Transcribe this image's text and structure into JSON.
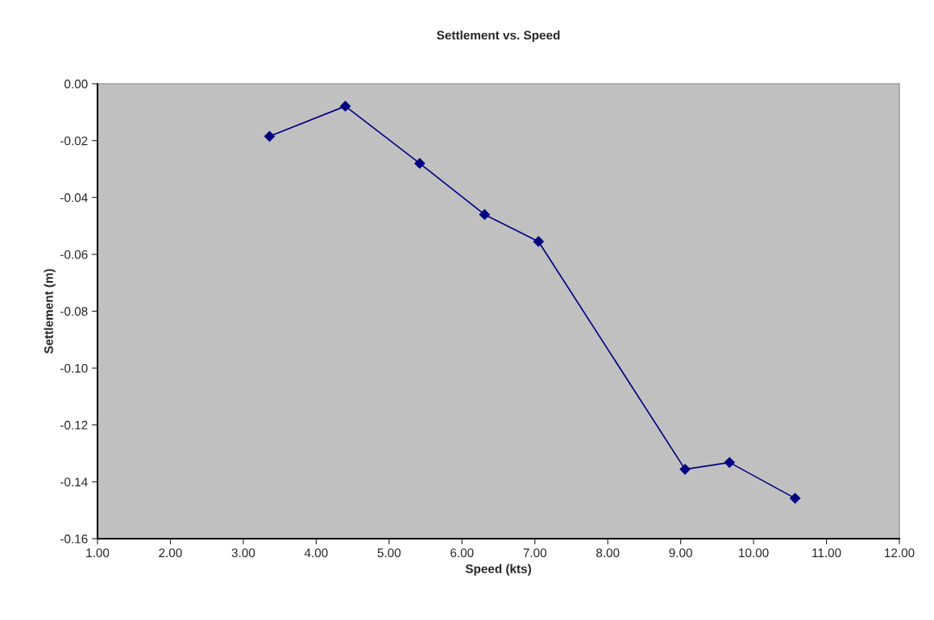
{
  "chart_data": {
    "type": "line",
    "title": "Settlement vs. Speed",
    "xlabel": "Speed (kts)",
    "ylabel": "Settlement (m)",
    "x": [
      3.36,
      4.4,
      5.42,
      6.31,
      7.05,
      9.06,
      9.67,
      10.57
    ],
    "series": [
      {
        "color": "#000080",
        "values": [
          -0.0185,
          -0.0079,
          -0.028,
          -0.046,
          -0.0555,
          -0.1356,
          -0.1332,
          -0.1458
        ]
      }
    ],
    "xlim": [
      1,
      12
    ],
    "xticks": [
      {
        "value": 1,
        "label": "1.00"
      },
      {
        "value": 2,
        "label": "2.00"
      },
      {
        "value": 3,
        "label": "3.00"
      },
      {
        "value": 4,
        "label": "4.00"
      },
      {
        "value": 5,
        "label": "5.00"
      },
      {
        "value": 6,
        "label": "6.00"
      },
      {
        "value": 7,
        "label": "7.00"
      },
      {
        "value": 8,
        "label": "8.00"
      },
      {
        "value": 9,
        "label": "9.00"
      },
      {
        "value": 10,
        "label": "10.00"
      },
      {
        "value": 11,
        "label": "11.00"
      },
      {
        "value": 12,
        "label": "12.00"
      }
    ],
    "ylim": [
      -0.16,
      0
    ],
    "yticks": [
      {
        "value": -0.16,
        "label": "-0.16"
      },
      {
        "value": -0.14,
        "label": "-0.14"
      },
      {
        "value": -0.12,
        "label": "-0.12"
      },
      {
        "value": -0.1,
        "label": "-0.10"
      },
      {
        "value": -0.08,
        "label": "-0.08"
      },
      {
        "value": -0.06,
        "label": "-0.06"
      },
      {
        "value": -0.04,
        "label": "-0.04"
      },
      {
        "value": -0.02,
        "label": "-0.02"
      },
      {
        "value": 0,
        "label": "0.00"
      }
    ],
    "marker": "diamond",
    "line_style": "solid",
    "grid": false,
    "legend": false
  }
}
